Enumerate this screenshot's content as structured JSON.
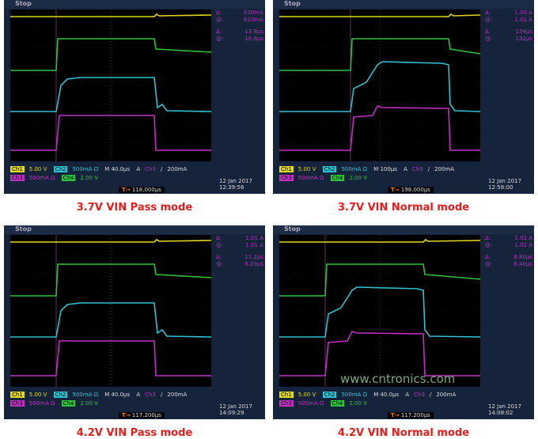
{
  "colors": {
    "ch1": "#e0d820",
    "ch2": "#30c0d0",
    "ch3": "#c030c0",
    "ch4": "#30c040",
    "caption": "#e02020"
  },
  "panels": [
    {
      "state": "Stop",
      "readout": [
        [
          "Δ:",
          "630mA"
        ],
        [
          "@:",
          "610mA"
        ],
        [
          "Δ:",
          "13.8µs"
        ],
        [
          "@:",
          "16.8µs"
        ]
      ],
      "ch1": "Ch1",
      "ch1_scale": "5.00 V",
      "ch2": "Ch2",
      "ch2_scale": "500mA Ω",
      "timebase": "M 40.0µs",
      "trig_mode": "A",
      "trig_ch": "Ch3",
      "trig_slope": "/",
      "trig_level": "200mA",
      "ch3": "Ch3",
      "ch3_scale": "500mA Ω",
      "ch4": "Ch4",
      "ch4_scale": "2.00 V",
      "trig_pos": "118.000µs",
      "date": "12 Jan  2017",
      "time": "12:39:56",
      "caption": "3.7V VIN Pass mode"
    },
    {
      "state": "Stop",
      "readout": [
        [
          "Δ:",
          "1.00 A"
        ],
        [
          "@:",
          "1.01 A"
        ],
        [
          "Δ:",
          "134µs"
        ],
        [
          "@:",
          "132µs"
        ]
      ],
      "ch1": "Ch1",
      "ch1_scale": "5.00 V",
      "ch2": "Ch2",
      "ch2_scale": "500mA Ω",
      "timebase": "M 100µs",
      "trig_mode": "A",
      "trig_ch": "Ch3",
      "trig_slope": "/",
      "trig_level": "200mA",
      "ch3": "Ch3",
      "ch3_scale": "500mA Ω",
      "ch4": "Ch4",
      "ch4_scale": "2.00 V",
      "trig_pos": "198.000µs",
      "date": "12 Jan  2017",
      "time": "12:58:00",
      "caption": "3.7V VIN Normal mode"
    },
    {
      "state": "Stop",
      "readout": [
        [
          "Δ:",
          "1.01 A"
        ],
        [
          "@:",
          "1.01 A"
        ],
        [
          "Δ:",
          "11.2µs"
        ],
        [
          "@:",
          "6.20µs"
        ]
      ],
      "ch1": "Ch1",
      "ch1_scale": "5.00 V",
      "ch2": "Ch2",
      "ch2_scale": "500mA Ω",
      "timebase": "M 40.0µs",
      "trig_mode": "A",
      "trig_ch": "Ch3",
      "trig_slope": "/",
      "trig_level": "200mA",
      "ch3": "Ch3",
      "ch3_scale": "500mA Ω",
      "ch4": "Ch4",
      "ch4_scale": "2.00 V",
      "trig_pos": "117.200µs",
      "date": "12 Jan  2017",
      "time": "14:09:29",
      "caption": "4.2V VIN Pass mode"
    },
    {
      "state": "Stop",
      "readout": [
        [
          "Δ:",
          "1.02 A"
        ],
        [
          "@:",
          "1.02 A"
        ],
        [
          "Δ:",
          "8.80µs"
        ],
        [
          "@:",
          "6.40µs"
        ]
      ],
      "ch1": "Ch1",
      "ch1_scale": "5.00 V",
      "ch2": "Ch2",
      "ch2_scale": "500mA Ω",
      "timebase": "M 40.0µs",
      "trig_mode": "A",
      "trig_ch": "Ch3",
      "trig_slope": "/",
      "trig_level": "200mA",
      "ch3": "Ch3",
      "ch3_scale": "500mA Ω",
      "ch4": "Ch4",
      "ch4_scale": "2.00 V",
      "trig_pos": "117.200µs",
      "date": "12 Jan  2017",
      "time": "14:08:02",
      "caption": "4.2V VIN Normal mode"
    }
  ],
  "watermark": "www.cntronics.com"
}
